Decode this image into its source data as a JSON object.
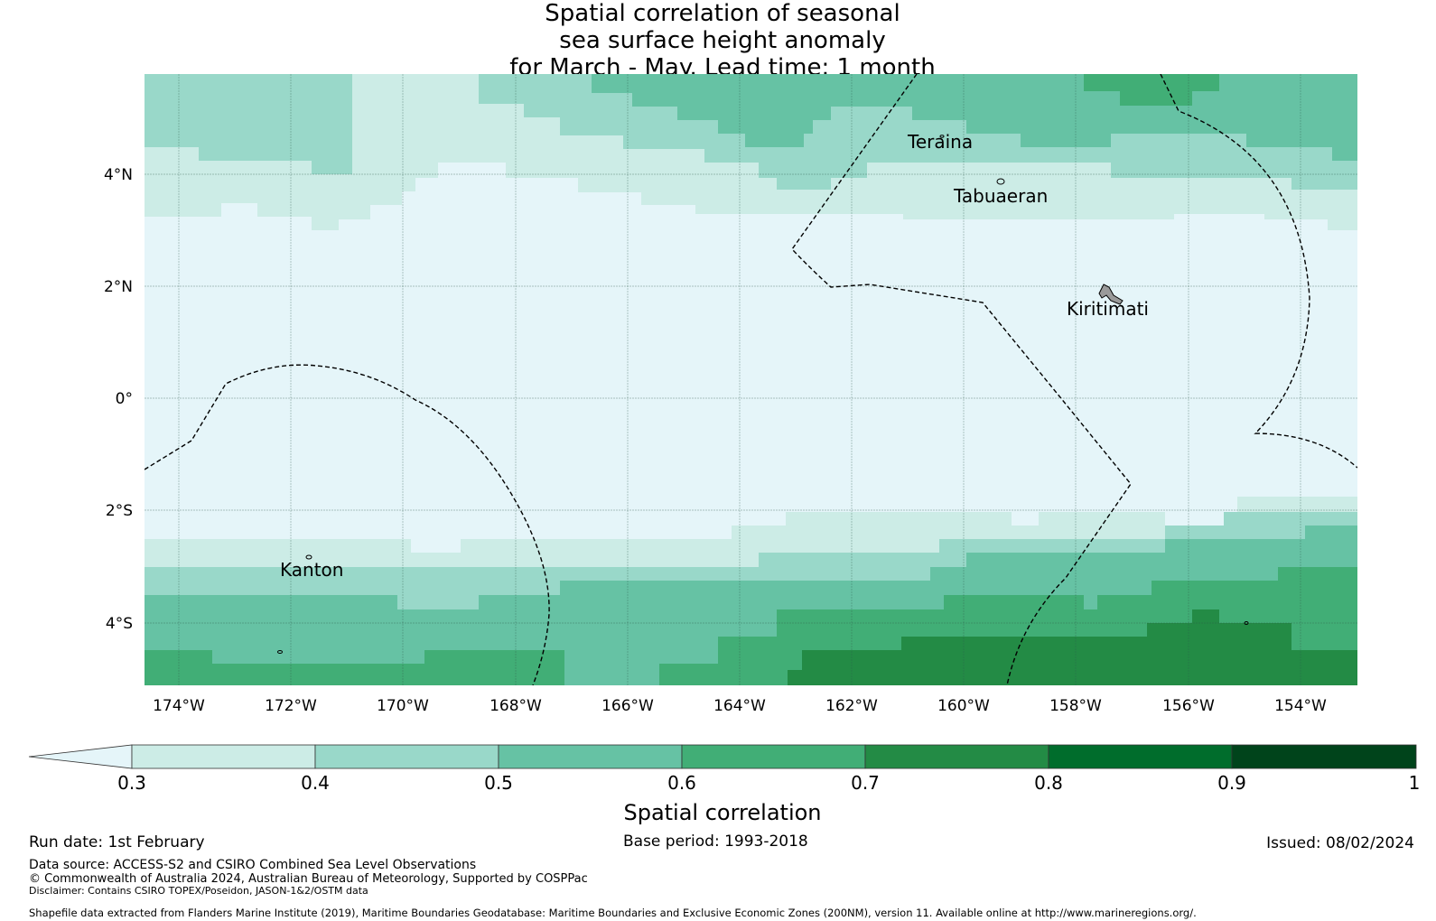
{
  "title": {
    "line1": "Spatial correlation of seasonal",
    "line2": "sea surface height anomaly",
    "line3": "for March - May. Lead time: 1 month"
  },
  "map": {
    "lon_labels": [
      "174°W",
      "172°W",
      "170°W",
      "168°W",
      "166°W",
      "164°W",
      "162°W",
      "160°W",
      "158°W",
      "156°W",
      "154°W"
    ],
    "lat_labels": [
      "4°N",
      "2°N",
      "0°",
      "2°S",
      "4°S"
    ],
    "places": [
      "Teraina",
      "Tabuaeran",
      "Kiritimati",
      "Kanton"
    ]
  },
  "colorbar": {
    "tick_labels": [
      "0.3",
      "0.4",
      "0.5",
      "0.6",
      "0.7",
      "0.8",
      "0.9",
      "1"
    ],
    "colors": [
      "#e5f5f9",
      "#ccece6",
      "#99d8c9",
      "#66c2a4",
      "#41ae76",
      "#238b45",
      "#006d2c",
      "#00441b"
    ],
    "title": "Spatial correlation"
  },
  "footer": {
    "run_date": "Run date: 1st February",
    "base_period": "Base period: 1993-2018",
    "issued": "Issued: 08/02/2024",
    "data_source": "Data source: ACCESS-S2 and CSIRO Combined Sea Level Observations",
    "copyright": "© Commonwealth of Australia 2024, Australian Bureau of Meteorology, Supported by COSPPac",
    "disclaimer": "Disclaimer: Contains CSIRO TOPEX/Poseidon, JASON-1&2/OSTM data",
    "shapefile": "Shapefile data extracted from Flanders Marine Institute (2019), Maritime Boundaries Geodatabase: Maritime Boundaries and Exclusive Economic Zones (200NM), version 11. Available online at http://www.marineregions.org/."
  }
}
